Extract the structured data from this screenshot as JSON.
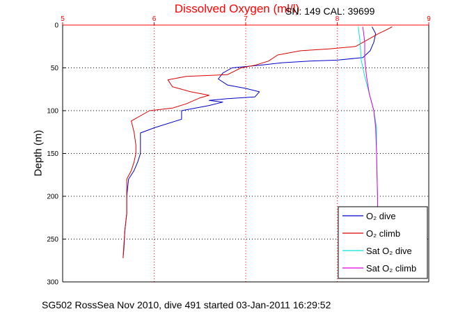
{
  "title": "Dissolved Oxygen (ml/l)",
  "serial_note": "SN: 149  CAL: 39699",
  "footer": "SG502 RossSea Nov 2010, dive 491 started 03-Jan-2011 16:29:52",
  "colors": {
    "o2_dive": "#0000cc",
    "o2_climb": "#dd0000",
    "sat_dive": "#00e5e5",
    "sat_climb": "#dd00dd",
    "top_axis": "#ff0000"
  },
  "chart_data": {
    "type": "line",
    "title": "Dissolved Oxygen (ml/l)",
    "ylabel": "Depth (m)",
    "xlim": [
      5,
      9
    ],
    "ylim": [
      0,
      300
    ],
    "y_reversed": true,
    "grid": true,
    "legend_position": "bottom-right",
    "x_ticks": [
      "5",
      "6",
      "7",
      "8",
      "9"
    ],
    "y_ticks": [
      "0",
      "50",
      "100",
      "150",
      "200",
      "250",
      "300"
    ],
    "series": [
      {
        "name": "O2 dive",
        "points": [
          [
            8.38,
            2
          ],
          [
            8.42,
            10
          ],
          [
            8.4,
            20
          ],
          [
            8.36,
            30
          ],
          [
            8.28,
            38
          ],
          [
            8.0,
            41
          ],
          [
            7.7,
            42
          ],
          [
            7.4,
            44
          ],
          [
            7.15,
            47
          ],
          [
            6.85,
            50
          ],
          [
            6.75,
            56
          ],
          [
            6.7,
            63
          ],
          [
            6.8,
            70
          ],
          [
            7.0,
            74
          ],
          [
            7.15,
            78
          ],
          [
            7.1,
            84
          ],
          [
            6.8,
            86
          ],
          [
            6.6,
            88
          ],
          [
            6.75,
            90
          ],
          [
            6.6,
            94
          ],
          [
            6.3,
            100
          ],
          [
            6.3,
            110
          ],
          [
            6.0,
            120
          ],
          [
            5.85,
            126
          ],
          [
            5.85,
            140
          ],
          [
            5.85,
            150
          ],
          [
            5.82,
            160
          ],
          [
            5.78,
            170
          ],
          [
            5.72,
            180
          ],
          [
            5.7,
            200
          ],
          [
            5.7,
            220
          ],
          [
            5.68,
            240
          ],
          [
            5.67,
            260
          ],
          [
            5.66,
            272
          ]
        ]
      },
      {
        "name": "O2 climb",
        "points": [
          [
            5.66,
            272
          ],
          [
            5.67,
            255
          ],
          [
            5.68,
            240
          ],
          [
            5.7,
            220
          ],
          [
            5.7,
            200
          ],
          [
            5.7,
            180
          ],
          [
            5.75,
            170
          ],
          [
            5.78,
            160
          ],
          [
            5.8,
            150
          ],
          [
            5.8,
            140
          ],
          [
            5.78,
            125
          ],
          [
            5.75,
            112
          ],
          [
            5.95,
            100
          ],
          [
            6.2,
            97
          ],
          [
            6.35,
            92
          ],
          [
            6.5,
            85
          ],
          [
            6.6,
            82
          ],
          [
            6.4,
            78
          ],
          [
            6.2,
            72
          ],
          [
            6.15,
            64
          ],
          [
            6.35,
            60
          ],
          [
            6.8,
            58
          ],
          [
            6.95,
            50
          ],
          [
            7.1,
            47
          ],
          [
            7.25,
            42
          ],
          [
            7.35,
            35
          ],
          [
            7.6,
            30
          ],
          [
            7.9,
            28
          ],
          [
            8.2,
            25
          ],
          [
            8.45,
            10
          ],
          [
            8.55,
            5
          ],
          [
            8.6,
            2
          ]
        ]
      },
      {
        "name": "Sat O2 dive",
        "points": [
          [
            8.23,
            2
          ],
          [
            8.25,
            20
          ],
          [
            8.26,
            40
          ],
          [
            8.3,
            60
          ],
          [
            8.35,
            80
          ],
          [
            8.4,
            100
          ],
          [
            8.43,
            120
          ],
          [
            8.43,
            150
          ],
          [
            8.44,
            200
          ],
          [
            8.44,
            215
          ]
        ]
      },
      {
        "name": "Sat O2 climb",
        "points": [
          [
            8.44,
            215
          ],
          [
            8.44,
            200
          ],
          [
            8.43,
            150
          ],
          [
            8.42,
            120
          ],
          [
            8.4,
            100
          ],
          [
            8.35,
            80
          ],
          [
            8.32,
            60
          ],
          [
            8.3,
            40
          ],
          [
            8.3,
            20
          ],
          [
            8.28,
            2
          ]
        ]
      }
    ],
    "legend": {
      "entries": [
        {
          "label": "O₂ dive"
        },
        {
          "label": "O₂ climb"
        },
        {
          "label": "Sat O₂ dive"
        },
        {
          "label": "Sat O₂ climb"
        }
      ]
    }
  }
}
